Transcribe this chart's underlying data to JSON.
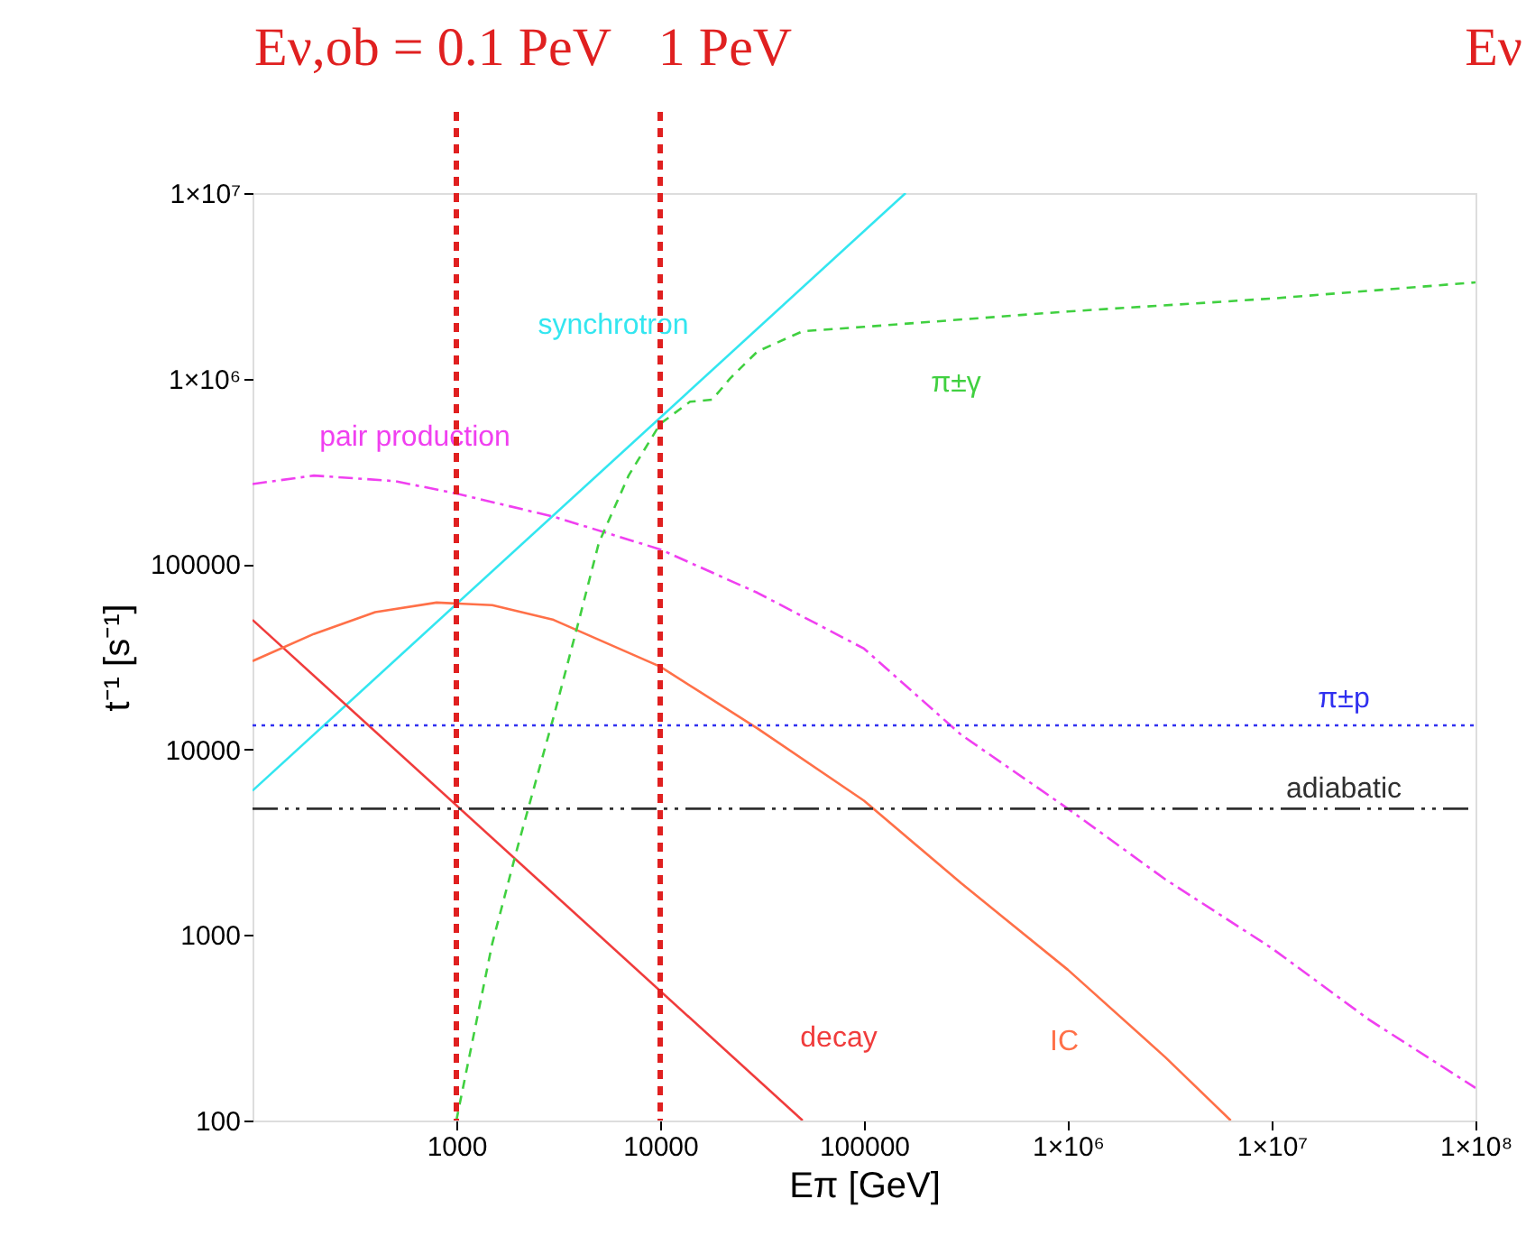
{
  "chart_data": {
    "type": "line",
    "xlabel": "Eπ [GeV]",
    "ylabel": "t⁻¹ [s⁻¹]",
    "log": "xy",
    "grid": false,
    "legend": false,
    "marker": "none",
    "xlim": [
      100,
      100000000
    ],
    "ylim": [
      100,
      10000000
    ],
    "xticks": [
      1000,
      10000,
      100000,
      {
        "value": 1000000,
        "label": "1×10⁶"
      },
      {
        "value": 10000000,
        "label": "1×10⁷"
      },
      {
        "value": 100000000,
        "label": "1×10⁸"
      }
    ],
    "yticks": [
      100,
      1000,
      10000,
      100000,
      {
        "value": 1000000,
        "label": "1×10⁶"
      },
      {
        "value": 10000000,
        "label": "1×10⁷"
      }
    ],
    "series": [
      {
        "name": "synchrotron",
        "color": "#33e6f0",
        "line_style": "solid",
        "x": [
          100,
          160000
        ],
        "values": [
          6000,
          10000000
        ]
      },
      {
        "name": "decay",
        "color": "#f03c3c",
        "line_style": "solid",
        "x": [
          100,
          50000
        ],
        "values": [
          50000,
          100
        ]
      },
      {
        "name": "IC",
        "color": "#ff7048",
        "line_style": "solid",
        "x": [
          100,
          200,
          400,
          800,
          1500,
          3000,
          10000,
          30000,
          100000,
          300000,
          1000000,
          3000000,
          6300000
        ],
        "values": [
          30000,
          42000,
          55000,
          62000,
          60000,
          50000,
          28000,
          13000,
          5300,
          1900,
          650,
          220,
          100
        ]
      },
      {
        "name": "pair production",
        "color": "#f040f0",
        "line_style": "dashdot",
        "x": [
          100,
          200,
          500,
          1000,
          3000,
          10000,
          30000,
          100000,
          300000,
          1000000,
          3000000,
          10000000,
          30000000,
          100000000
        ],
        "values": [
          270000,
          300000,
          280000,
          240000,
          180000,
          120000,
          70000,
          35000,
          12000,
          4800,
          2000,
          850,
          350,
          150
        ]
      },
      {
        "name": "π±γ",
        "color": "#40d040",
        "line_style": "dashed",
        "x": [
          1000,
          1500,
          2000,
          3000,
          4000,
          5000,
          7000,
          10000,
          14000,
          18000,
          22000,
          30000,
          50000,
          100000,
          1000000,
          10000000,
          100000000
        ],
        "values": [
          100,
          900,
          3000,
          15000,
          50000,
          130000,
          300000,
          570000,
          750000,
          770000,
          1000000,
          1400000,
          1800000,
          1900000,
          2300000,
          2700000,
          3300000
        ]
      },
      {
        "name": "π±p",
        "color": "#3030f0",
        "line_style": "dotted",
        "x": [
          100,
          100000000
        ],
        "values": [
          13500,
          13500
        ]
      },
      {
        "name": "adiabatic",
        "color": "#303030",
        "line_style": "dashdotdot",
        "x": [
          100,
          100000000
        ],
        "values": [
          4800,
          4800
        ]
      }
    ],
    "ref_lines": [
      {
        "axis": "x",
        "value": 1000,
        "color": "#e02020",
        "line_style": "dashed"
      },
      {
        "axis": "x",
        "value": 10000,
        "color": "#e02020",
        "line_style": "dashed"
      }
    ],
    "annotations": [
      "Eν,ob = 0.1 PeV",
      "1 PeV",
      "Eν"
    ]
  }
}
